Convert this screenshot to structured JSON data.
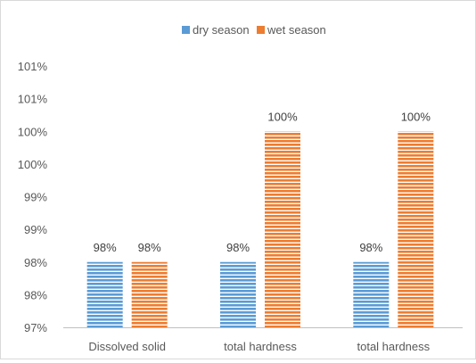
{
  "chart_data": {
    "type": "bar",
    "title": "",
    "xlabel": "",
    "ylabel": "",
    "categories": [
      "Dissolved solid",
      "total hardness",
      "total hardness"
    ],
    "series": [
      {
        "name": "dry season",
        "color": "#5b9bd5",
        "values": [
          0.98,
          0.98,
          0.98
        ],
        "labels": [
          "98%",
          "98%",
          "98%"
        ]
      },
      {
        "name": "wet season",
        "color": "#ed7d31",
        "values": [
          0.98,
          1.0,
          1.0
        ],
        "labels": [
          "98%",
          "100%",
          "100%"
        ]
      }
    ],
    "ylim": [
      0.97,
      1.01
    ],
    "y_tick_values": [
      0.97,
      0.975,
      0.98,
      0.985,
      0.99,
      0.995,
      1.0,
      1.005,
      1.01
    ],
    "y_tick_labels": [
      "97%",
      "98%",
      "98%",
      "99%",
      "99%",
      "100%",
      "100%",
      "101%",
      "101%"
    ],
    "grid": false,
    "legend_position": "top",
    "bar_pattern": "horizontal-stripes"
  }
}
